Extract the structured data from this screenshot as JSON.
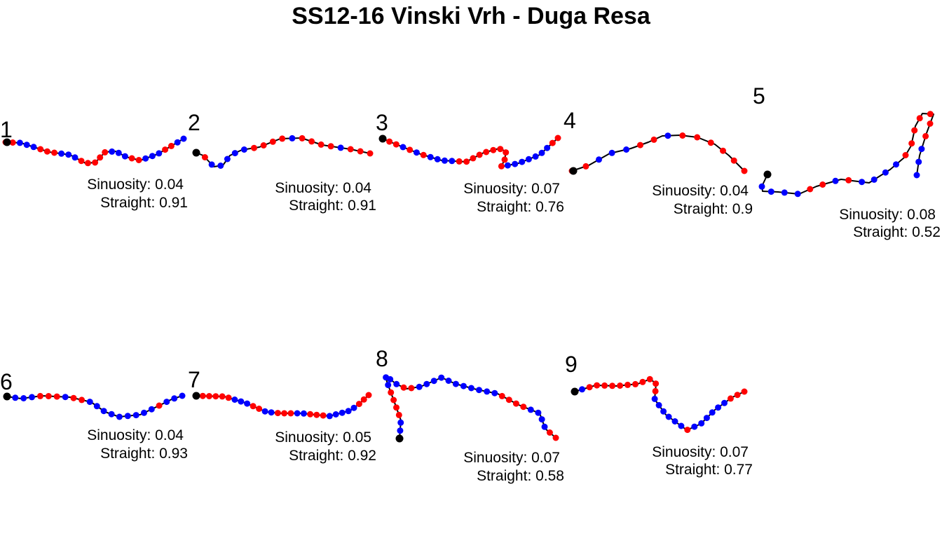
{
  "title": "SS12-16 Vinski Vrh - Duga Resa",
  "colors": {
    "red": "#ff0000",
    "blue": "#0000ff",
    "line": "#000000",
    "start": "#000000"
  },
  "panels": [
    {
      "label": "1",
      "sinuosity_text": "Sinuosity: 0.04",
      "straight_text": "Straight: 0.91"
    },
    {
      "label": "2",
      "sinuosity_text": "Sinuosity: 0.04",
      "straight_text": "Straight: 0.91"
    },
    {
      "label": "3",
      "sinuosity_text": "Sinuosity: 0.07",
      "straight_text": "Straight: 0.76"
    },
    {
      "label": "4",
      "sinuosity_text": "Sinuosity: 0.04",
      "straight_text": "Straight: 0.9"
    },
    {
      "label": "5",
      "sinuosity_text": "Sinuosity: 0.08",
      "straight_text": "Straight: 0.52"
    },
    {
      "label": "6",
      "sinuosity_text": "Sinuosity: 0.04",
      "straight_text": "Straight: 0.93"
    },
    {
      "label": "7",
      "sinuosity_text": "Sinuosity: 0.05",
      "straight_text": "Straight: 0.92"
    },
    {
      "label": "8",
      "sinuosity_text": "Sinuosity: 0.07",
      "straight_text": "Straight: 0.58"
    },
    {
      "label": "9",
      "sinuosity_text": "Sinuosity: 0.07",
      "straight_text": "Straight: 0.77"
    }
  ]
}
